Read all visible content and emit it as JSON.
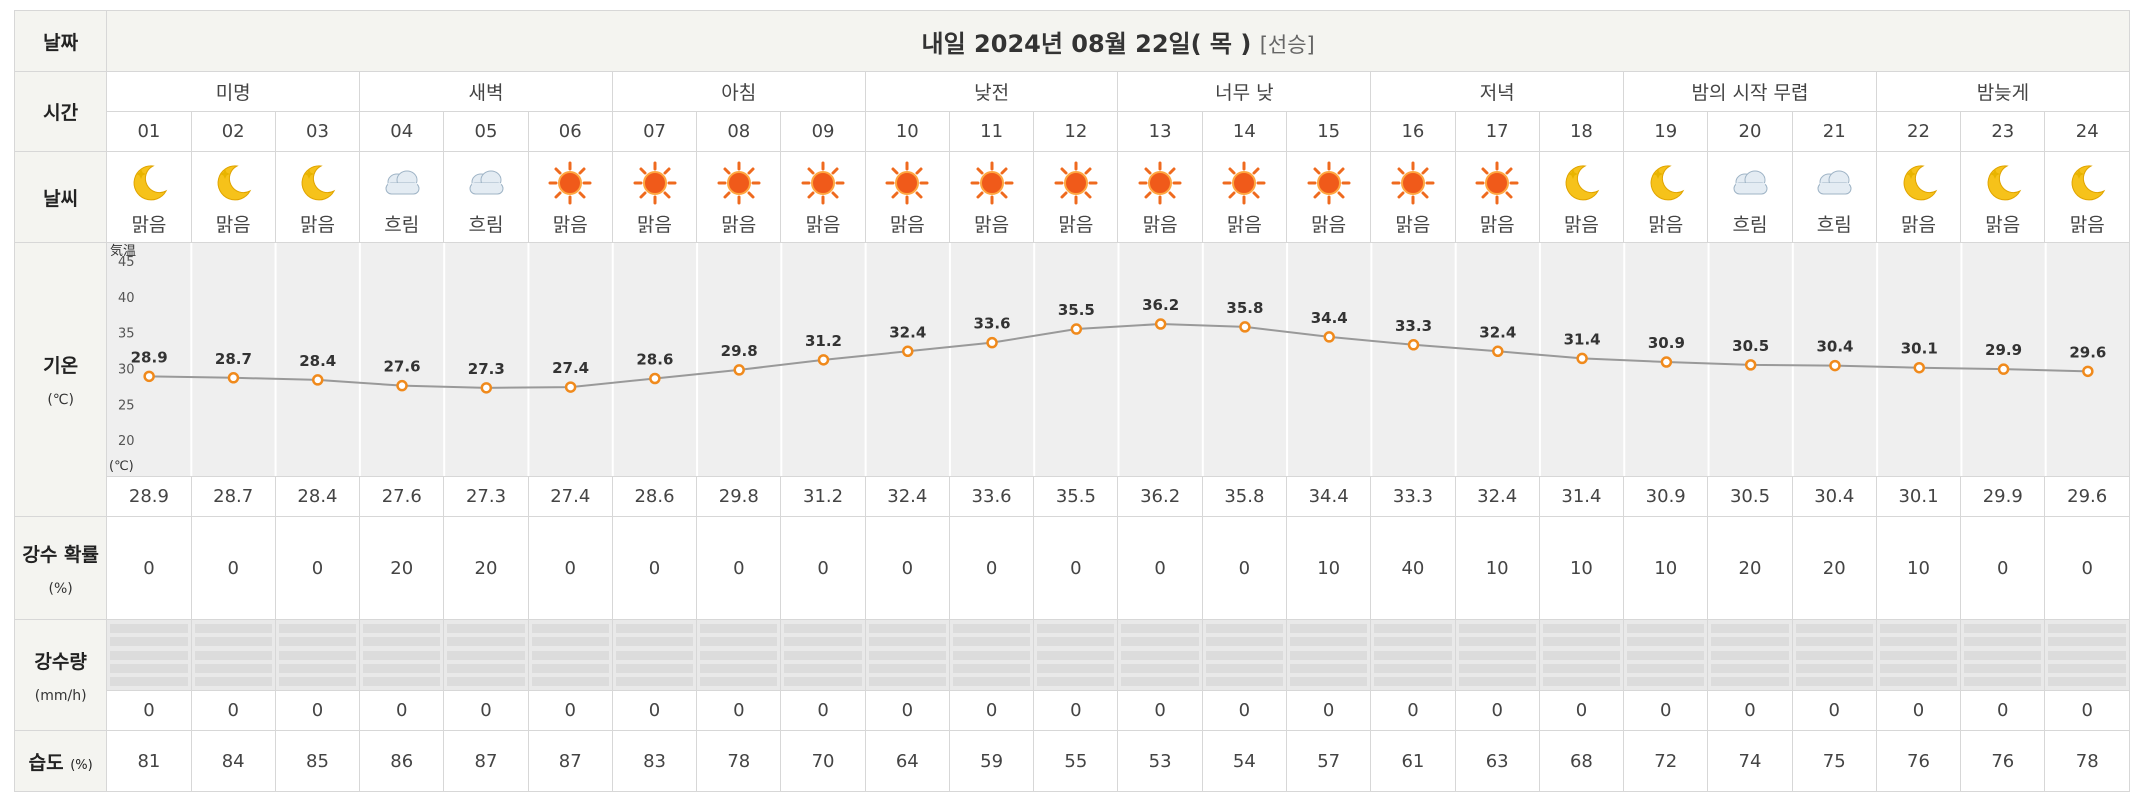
{
  "labels": {
    "date": "날짜",
    "time": "시간",
    "weather": "날씨",
    "temp": "기온",
    "temp_unit": "(℃)",
    "pop": "강수 확률",
    "pop_unit": "(%)",
    "precip": "강수량",
    "precip_unit": "(mm/h)",
    "humidity": "습도",
    "humidity_unit": "(%)"
  },
  "header": {
    "title": "내일 2024년 08월 22일( 목 )",
    "note": "[선승]"
  },
  "periods": [
    {
      "label": "미명",
      "span": 3
    },
    {
      "label": "새벽",
      "span": 3
    },
    {
      "label": "아침",
      "span": 3
    },
    {
      "label": "낮전",
      "span": 3
    },
    {
      "label": "너무 낮",
      "span": 3
    },
    {
      "label": "저녁",
      "span": 3
    },
    {
      "label": "밤의 시작 무렵",
      "span": 3
    },
    {
      "label": "밤늦게",
      "span": 3
    }
  ],
  "hours": [
    "01",
    "02",
    "03",
    "04",
    "05",
    "06",
    "07",
    "08",
    "09",
    "10",
    "11",
    "12",
    "13",
    "14",
    "15",
    "16",
    "17",
    "18",
    "19",
    "20",
    "21",
    "22",
    "23",
    "24"
  ],
  "weather": [
    {
      "icon": "moon-icon",
      "label": "맑음"
    },
    {
      "icon": "moon-icon",
      "label": "맑음"
    },
    {
      "icon": "moon-icon",
      "label": "맑음"
    },
    {
      "icon": "cloud-icon",
      "label": "흐림"
    },
    {
      "icon": "cloud-icon",
      "label": "흐림"
    },
    {
      "icon": "sun-icon",
      "label": "맑음"
    },
    {
      "icon": "sun-icon",
      "label": "맑음"
    },
    {
      "icon": "sun-icon",
      "label": "맑음"
    },
    {
      "icon": "sun-icon",
      "label": "맑음"
    },
    {
      "icon": "sun-icon",
      "label": "맑음"
    },
    {
      "icon": "sun-icon",
      "label": "맑음"
    },
    {
      "icon": "sun-icon",
      "label": "맑음"
    },
    {
      "icon": "sun-icon",
      "label": "맑음"
    },
    {
      "icon": "sun-icon",
      "label": "맑음"
    },
    {
      "icon": "sun-icon",
      "label": "맑음"
    },
    {
      "icon": "sun-icon",
      "label": "맑음"
    },
    {
      "icon": "sun-icon",
      "label": "맑음"
    },
    {
      "icon": "moon-icon",
      "label": "맑음"
    },
    {
      "icon": "moon-icon",
      "label": "맑음"
    },
    {
      "icon": "cloud-icon",
      "label": "흐림"
    },
    {
      "icon": "cloud-icon",
      "label": "흐림"
    },
    {
      "icon": "moon-icon",
      "label": "맑음"
    },
    {
      "icon": "moon-icon",
      "label": "맑음"
    },
    {
      "icon": "moon-icon",
      "label": "맑음"
    }
  ],
  "chart_data": {
    "type": "line",
    "title": "",
    "ylabel_top": "気温",
    "ylabel_bottom": "(℃)",
    "yticks": [
      20,
      25,
      30,
      35,
      40,
      45
    ],
    "ylim": [
      15,
      47.5
    ],
    "x": [
      "01",
      "02",
      "03",
      "04",
      "05",
      "06",
      "07",
      "08",
      "09",
      "10",
      "11",
      "12",
      "13",
      "14",
      "15",
      "16",
      "17",
      "18",
      "19",
      "20",
      "21",
      "22",
      "23",
      "24"
    ],
    "series": [
      {
        "values": [
          28.9,
          28.7,
          28.4,
          27.6,
          27.3,
          27.4,
          28.6,
          29.8,
          31.2,
          32.4,
          33.6,
          35.5,
          36.2,
          35.8,
          34.4,
          33.3,
          32.4,
          31.4,
          30.9,
          30.5,
          30.4,
          30.1,
          29.9,
          29.6
        ]
      }
    ],
    "line_color": "#999999",
    "marker_color": "#f08a1c"
  },
  "temps": [
    "28.9",
    "28.7",
    "28.4",
    "27.6",
    "27.3",
    "27.4",
    "28.6",
    "29.8",
    "31.2",
    "32.4",
    "33.6",
    "35.5",
    "36.2",
    "35.8",
    "34.4",
    "33.3",
    "32.4",
    "31.4",
    "30.9",
    "30.5",
    "30.4",
    "30.1",
    "29.9",
    "29.6"
  ],
  "pop": [
    "0",
    "0",
    "0",
    "20",
    "20",
    "0",
    "0",
    "0",
    "0",
    "0",
    "0",
    "0",
    "0",
    "0",
    "10",
    "40",
    "10",
    "10",
    "10",
    "20",
    "20",
    "10",
    "0",
    "0"
  ],
  "precip": [
    "0",
    "0",
    "0",
    "0",
    "0",
    "0",
    "0",
    "0",
    "0",
    "0",
    "0",
    "0",
    "0",
    "0",
    "0",
    "0",
    "0",
    "0",
    "0",
    "0",
    "0",
    "0",
    "0",
    "0"
  ],
  "humidity": [
    "81",
    "84",
    "85",
    "86",
    "87",
    "87",
    "83",
    "78",
    "70",
    "64",
    "59",
    "55",
    "53",
    "54",
    "57",
    "61",
    "63",
    "68",
    "72",
    "74",
    "75",
    "76",
    "76",
    "78"
  ]
}
